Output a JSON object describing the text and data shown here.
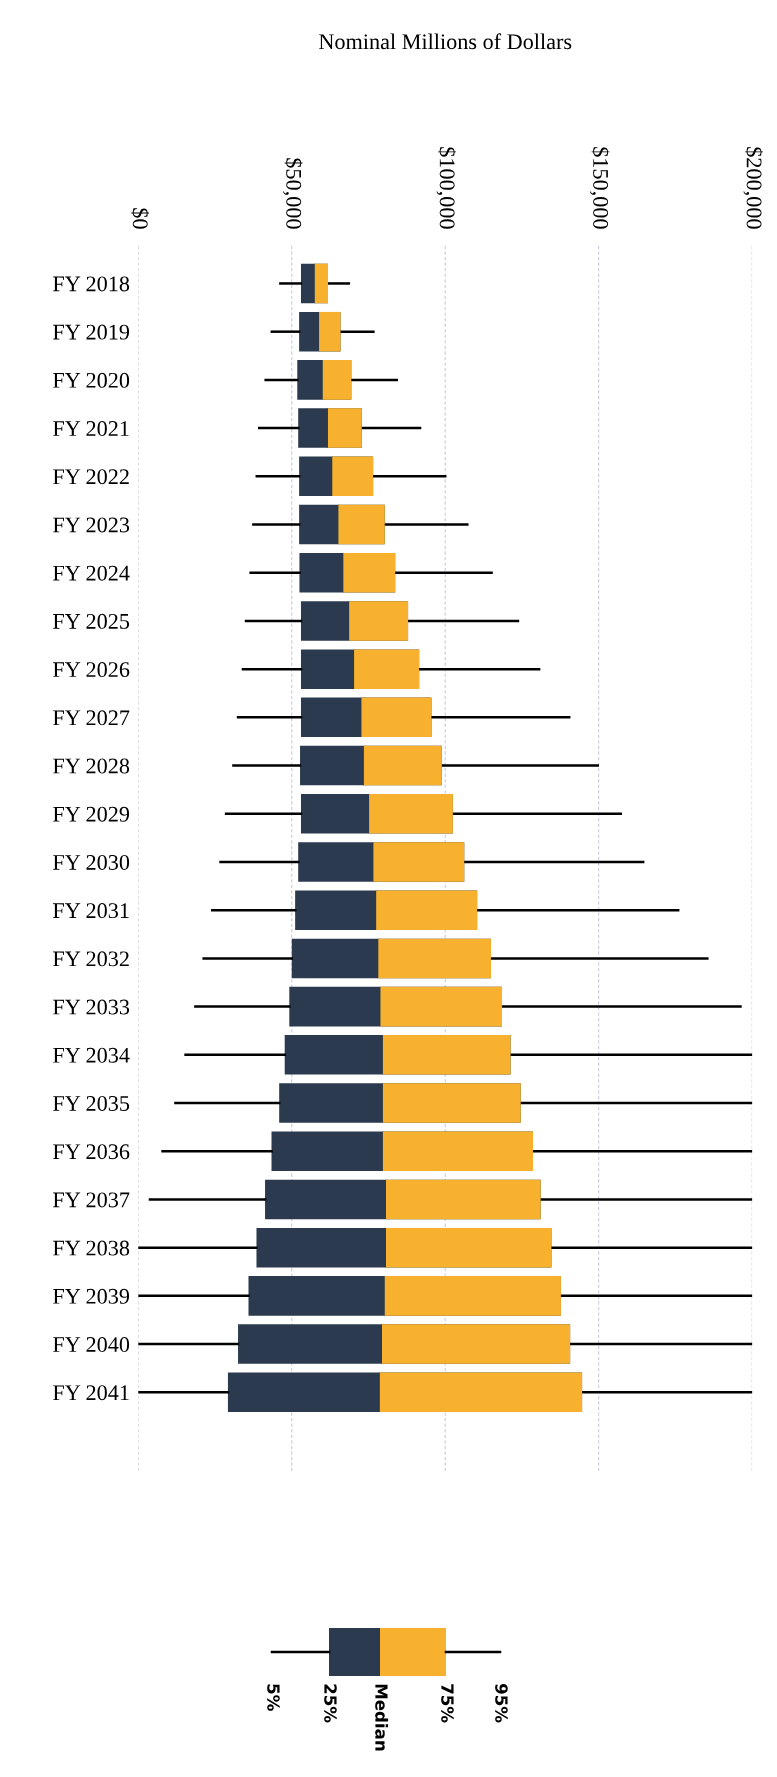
{
  "chart_data": {
    "type": "box",
    "orientation": "horizontal",
    "xlabel": "Nominal Millions of Dollars",
    "categories": [
      "FY 2018",
      "FY 2019",
      "FY 2020",
      "FY 2021",
      "FY 2022",
      "FY 2023",
      "FY 2024",
      "FY 2025",
      "FY 2026",
      "FY 2027",
      "FY 2028",
      "FY 2029",
      "FY 2030",
      "FY 2031",
      "FY 2032",
      "FY 2033",
      "FY 2034",
      "FY 2035",
      "FY 2036",
      "FY 2037",
      "FY 2038",
      "FY 2039",
      "FY 2040",
      "FY 2041"
    ],
    "series": [
      {
        "color": "#2b3a4f",
        "boxes": [
          {
            "low": 46300,
            "q1": 53000,
            "median": 57500,
            "q3": 61800,
            "high": 68600
          },
          {
            "low": 43500,
            "q1": 52400,
            "median": 58900,
            "q3": 65900,
            "high": 76600
          },
          {
            "low": 41500,
            "q1": 51800,
            "median": 60100,
            "q3": 69400,
            "high": 84200
          },
          {
            "low": 39400,
            "q1": 52100,
            "median": 61800,
            "q3": 72800,
            "high": 91800
          },
          {
            "low": 38600,
            "q1": 52400,
            "median": 63200,
            "q3": 76500,
            "high": 100000
          },
          {
            "low": 37500,
            "q1": 52400,
            "median": 65200,
            "q3": 80300,
            "high": 107200
          },
          {
            "low": 36600,
            "q1": 52500,
            "median": 66800,
            "q3": 83700,
            "high": 115100
          },
          {
            "low": 35100,
            "q1": 53000,
            "median": 68700,
            "q3": 87900,
            "high": 123700
          },
          {
            "low": 34100,
            "q1": 53000,
            "median": 70300,
            "q3": 91500,
            "high": 130600
          },
          {
            "low": 32500,
            "q1": 53000,
            "median": 72700,
            "q3": 95500,
            "high": 140400
          },
          {
            "low": 31000,
            "q1": 52700,
            "median": 73500,
            "q3": 98900,
            "high": 149700
          },
          {
            "low": 28600,
            "q1": 53000,
            "median": 75200,
            "q3": 102500,
            "high": 157200
          },
          {
            "low": 26800,
            "q1": 52100,
            "median": 76600,
            "q3": 106200,
            "high": 164500
          },
          {
            "low": 24100,
            "q1": 51100,
            "median": 77500,
            "q3": 110400,
            "high": 175900
          },
          {
            "low": 21300,
            "q1": 50000,
            "median": 78200,
            "q3": 114900,
            "high": 185400
          },
          {
            "low": 18600,
            "q1": 49200,
            "median": 78900,
            "q3": 118500,
            "high": 196200
          },
          {
            "low": 15400,
            "q1": 47700,
            "median": 79700,
            "q3": 121300,
            "high": 200000
          },
          {
            "low": 12100,
            "q1": 45900,
            "median": 79700,
            "q3": 124600,
            "high": 200000
          },
          {
            "low": 7900,
            "q1": 43400,
            "median": 79700,
            "q3": 128600,
            "high": 200000
          },
          {
            "low": 3800,
            "q1": 41300,
            "median": 80700,
            "q3": 131100,
            "high": 200000
          },
          {
            "low": 0,
            "q1": 38500,
            "median": 80700,
            "q3": 134600,
            "high": 200000
          },
          {
            "low": 0,
            "q1": 35900,
            "median": 80300,
            "q3": 137700,
            "high": 200000
          },
          {
            "low": 0,
            "q1": 32500,
            "median": 79400,
            "q3": 140700,
            "high": 200000
          },
          {
            "low": 0,
            "q1": 29200,
            "median": 78700,
            "q3": 144600,
            "high": 200000
          }
        ]
      }
    ],
    "color": "#f8b12e",
    "xlim": [
      0,
      200000
    ],
    "xticks": [
      {
        "value": 0,
        "label": "$0"
      },
      {
        "value": 50000,
        "label": "$50,000"
      },
      {
        "value": 100000,
        "label": "$100,000"
      },
      {
        "value": 150000,
        "label": "$150,000"
      },
      {
        "value": 200000,
        "label": "$200,000"
      }
    ],
    "grid": "x",
    "annotations": [
      "5%",
      "25%",
      "Median",
      "75%",
      "95%"
    ]
  }
}
